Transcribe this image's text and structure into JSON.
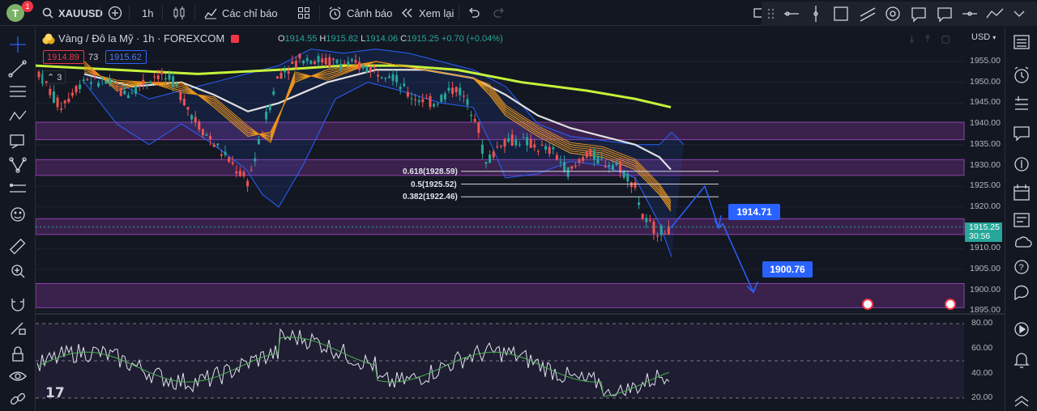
{
  "topbar": {
    "avatar_letter": "T",
    "notification_count": "1",
    "symbol": "XAUUSD",
    "interval": "1h",
    "indicators_label": "Các chỉ báo",
    "alerts_label": "Cảnh báo",
    "replay_label": "Xem lại"
  },
  "legend": {
    "title": "Vàng / Đô la Mỹ · 1h · FOREXCOM",
    "open_label": "O",
    "open": "1914.55",
    "high_label": "H",
    "high": "1915.82",
    "low_label": "L",
    "low": "1914.06",
    "close_label": "C",
    "close": "1915.25",
    "change": "+0.70 (+0.04%)",
    "sell_price": "1914.89",
    "spread": "73",
    "buy_price": "1915.62",
    "collapse_count": "3"
  },
  "price_axis": {
    "currency": "USD",
    "ticks": [
      "1955.00",
      "1950.00",
      "1945.00",
      "1940.00",
      "1935.00",
      "1930.00",
      "1925.00",
      "1920.00",
      "1915.00",
      "1910.00",
      "1905.00",
      "1900.00",
      "1895.00"
    ],
    "current_price": "1915.25",
    "countdown": "30:56"
  },
  "rsi_axis": {
    "ticks": [
      "80.00",
      "60.00",
      "40.00",
      "20.00"
    ]
  },
  "fib_levels": [
    {
      "label": "0.618(1928.59)"
    },
    {
      "label": "0.5(1925.52)"
    },
    {
      "label": "0.382(1922.46)"
    }
  ],
  "callouts": {
    "target1": "1914.71",
    "target2": "1900.76"
  },
  "colors": {
    "background": "#131722",
    "zone": "#4a1d5a",
    "ema_fast": "#f7a21b",
    "ma_slow": "#c6f23a",
    "ma_mid": "#e0e0e0",
    "bollinger": "#2962ff",
    "up": "#26a69a",
    "down": "#ef5350",
    "callout": "#2962ff"
  }
}
